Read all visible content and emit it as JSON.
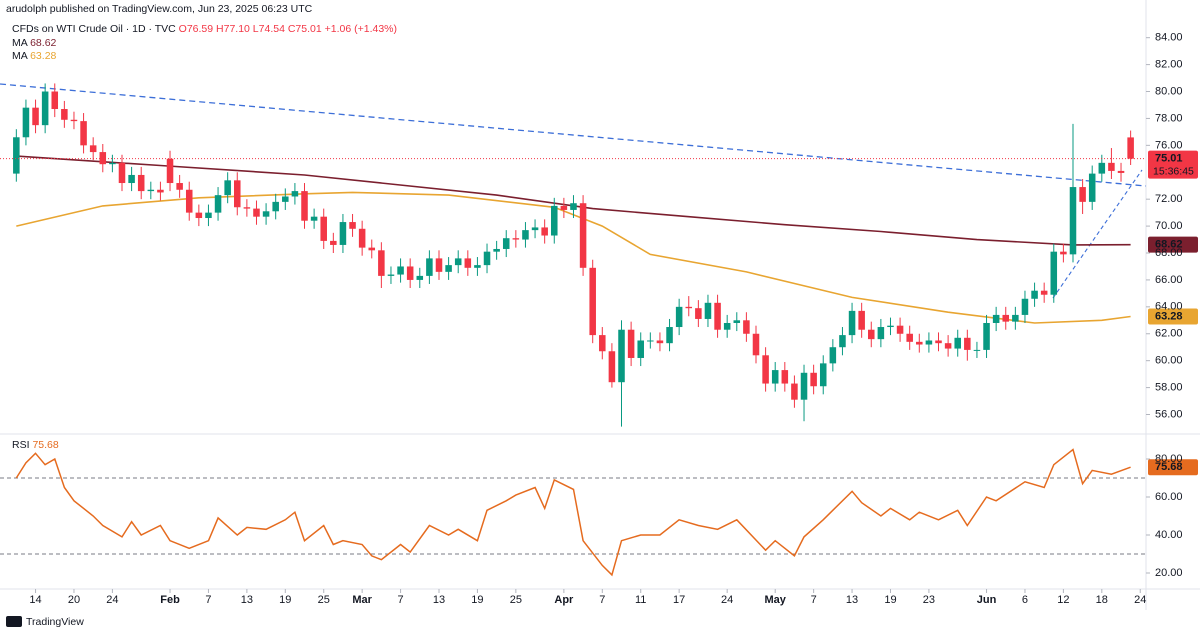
{
  "header": {
    "published": "arudolph published on TradingView.com, Jun 23, 2025 06:23 UTC",
    "symbol": "CFDs on WTI Crude Oil · 1D · TVC",
    "ohlc": "O76.59 H77.10 L74.54 C75.01",
    "change": "+1.06 (+1.43%)",
    "countdown": "15:36:45"
  },
  "footer": {
    "brand": "TradingView"
  },
  "chart_data": [
    {
      "type": "candlestick",
      "xlim": [
        -1.7,
        117.6
      ],
      "ylim": [
        54.7,
        86.8
      ],
      "grid": false,
      "up_color": "#089981",
      "down_color": "#f23645",
      "yticks": [
        {
          "value": 84,
          "label": "84.00"
        },
        {
          "value": 82,
          "label": "82.00"
        },
        {
          "value": 80,
          "label": "80.00"
        },
        {
          "value": 78,
          "label": "78.00"
        },
        {
          "value": 76,
          "label": "76.00"
        },
        {
          "value": 72,
          "label": "72.00"
        },
        {
          "value": 70,
          "label": "70.00"
        },
        {
          "value": 68,
          "label": "68.00"
        },
        {
          "value": 66,
          "label": "66.00"
        },
        {
          "value": 64,
          "label": "64.00"
        },
        {
          "value": 62,
          "label": "62.00"
        },
        {
          "value": 60,
          "label": "60.00"
        },
        {
          "value": 58,
          "label": "58.00"
        },
        {
          "value": 56,
          "label": "56.00"
        }
      ],
      "xticks": [
        {
          "value": 2,
          "label": "14"
        },
        {
          "value": 6,
          "label": "20"
        },
        {
          "value": 10,
          "label": "24"
        },
        {
          "value": 16,
          "label": "Feb"
        },
        {
          "value": 20,
          "label": "7"
        },
        {
          "value": 24,
          "label": "13"
        },
        {
          "value": 28,
          "label": "19"
        },
        {
          "value": 32,
          "label": "25"
        },
        {
          "value": 36,
          "label": "Mar"
        },
        {
          "value": 40,
          "label": "7"
        },
        {
          "value": 44,
          "label": "13"
        },
        {
          "value": 48,
          "label": "19"
        },
        {
          "value": 52,
          "label": "25"
        },
        {
          "value": 57,
          "label": "Apr"
        },
        {
          "value": 61,
          "label": "7"
        },
        {
          "value": 65,
          "label": "11"
        },
        {
          "value": 69,
          "label": "17"
        },
        {
          "value": 74,
          "label": "24"
        },
        {
          "value": 79,
          "label": "May"
        },
        {
          "value": 83,
          "label": "7"
        },
        {
          "value": 87,
          "label": "13"
        },
        {
          "value": 91,
          "label": "19"
        },
        {
          "value": 95,
          "label": "23"
        },
        {
          "value": 101,
          "label": "Jun"
        },
        {
          "value": 105,
          "label": "6"
        },
        {
          "value": 109,
          "label": "12"
        },
        {
          "value": 113,
          "label": "18"
        },
        {
          "value": 117,
          "label": "24"
        }
      ],
      "open": [
        73.9,
        76.6,
        78.8,
        77.5,
        80.0,
        78.7,
        77.9,
        77.8,
        76.0,
        75.5,
        74.6,
        74.7,
        73.2,
        73.8,
        72.6,
        72.7,
        75.0,
        73.2,
        72.7,
        71.0,
        70.6,
        71.0,
        72.3,
        73.4,
        71.4,
        71.3,
        70.7,
        71.1,
        71.8,
        72.2,
        72.6,
        70.4,
        70.7,
        68.9,
        68.6,
        70.3,
        69.8,
        68.4,
        68.2,
        66.3,
        66.4,
        67.0,
        66.0,
        66.3,
        67.6,
        66.6,
        67.1,
        67.6,
        66.9,
        67.1,
        68.1,
        68.3,
        69.1,
        69.0,
        69.7,
        69.9,
        69.3,
        71.5,
        71.2,
        71.7,
        66.9,
        61.9,
        60.7,
        58.4,
        62.3,
        60.2,
        61.5,
        61.5,
        61.3,
        62.5,
        64.0,
        63.9,
        63.1,
        64.3,
        62.3,
        62.8,
        63.0,
        62.0,
        60.4,
        58.3,
        59.3,
        58.3,
        57.1,
        59.1,
        58.1,
        59.8,
        61.0,
        61.9,
        63.7,
        62.3,
        61.6,
        62.5,
        62.6,
        62.0,
        61.4,
        61.2,
        61.5,
        61.3,
        60.9,
        61.7,
        60.8,
        60.8,
        62.8,
        63.4,
        62.9,
        63.4,
        64.6,
        65.2,
        64.9,
        68.1,
        67.9,
        72.9,
        71.8,
        73.9,
        74.7,
        74.1,
        76.59
      ],
      "high": [
        77.2,
        79.4,
        79.4,
        80.6,
        80.6,
        79.3,
        78.5,
        78.4,
        76.6,
        76.1,
        75.3,
        75.3,
        74.4,
        74.4,
        73.3,
        73.3,
        75.6,
        73.8,
        73.3,
        71.6,
        71.6,
        72.9,
        74.0,
        74.0,
        72.0,
        71.9,
        71.7,
        72.4,
        72.8,
        73.2,
        73.2,
        71.3,
        71.3,
        69.5,
        70.9,
        70.9,
        70.4,
        69.0,
        68.8,
        67.0,
        67.6,
        67.6,
        66.9,
        68.2,
        68.2,
        67.7,
        68.2,
        68.2,
        67.7,
        68.7,
        68.9,
        69.7,
        69.7,
        70.3,
        70.5,
        70.5,
        72.1,
        72.1,
        72.3,
        72.3,
        67.5,
        62.5,
        61.3,
        63.0,
        62.9,
        62.1,
        62.1,
        62.1,
        63.1,
        64.6,
        64.8,
        64.5,
        64.9,
        64.9,
        63.4,
        63.6,
        63.6,
        62.6,
        61.0,
        59.9,
        59.9,
        58.9,
        59.7,
        59.7,
        60.4,
        61.6,
        62.5,
        64.3,
        64.3,
        62.9,
        63.1,
        63.2,
        63.2,
        62.6,
        62.0,
        62.1,
        62.1,
        61.9,
        62.3,
        62.3,
        61.4,
        63.4,
        64.0,
        64.0,
        64.0,
        65.2,
        65.8,
        65.8,
        68.7,
        68.7,
        77.6,
        73.5,
        74.5,
        75.3,
        75.8,
        74.7,
        77.1
      ],
      "low": [
        73.3,
        76.0,
        76.9,
        76.9,
        78.1,
        77.3,
        77.2,
        75.4,
        74.9,
        74.0,
        74.0,
        72.6,
        72.6,
        72.0,
        72.0,
        71.9,
        72.6,
        72.1,
        70.4,
        70.0,
        70.0,
        70.4,
        71.7,
        70.8,
        70.7,
        70.1,
        70.1,
        70.5,
        71.2,
        71.6,
        69.8,
        69.8,
        68.3,
        68.0,
        68.0,
        69.2,
        67.8,
        67.6,
        65.4,
        65.7,
        65.8,
        65.4,
        65.4,
        65.7,
        66.0,
        66.0,
        66.5,
        66.3,
        66.3,
        66.5,
        67.5,
        67.7,
        68.4,
        68.4,
        69.1,
        68.7,
        68.7,
        70.6,
        70.6,
        66.3,
        61.3,
        60.1,
        58.0,
        55.1,
        59.6,
        59.6,
        60.9,
        60.7,
        60.7,
        61.9,
        63.3,
        62.5,
        62.5,
        61.7,
        61.7,
        62.2,
        61.4,
        59.8,
        57.7,
        57.7,
        57.7,
        56.5,
        55.5,
        57.5,
        57.5,
        59.2,
        60.4,
        61.3,
        61.7,
        61.0,
        61.0,
        61.9,
        61.4,
        60.8,
        60.6,
        60.6,
        60.7,
        60.3,
        60.3,
        60.0,
        60.2,
        60.2,
        62.2,
        62.3,
        62.3,
        62.8,
        64.0,
        64.3,
        64.3,
        67.3,
        67.3,
        70.9,
        71.2,
        73.3,
        73.5,
        73.3,
        74.54
      ],
      "close": [
        76.6,
        78.8,
        77.5,
        80.0,
        78.7,
        77.9,
        77.8,
        76.0,
        75.5,
        74.6,
        74.7,
        73.2,
        73.8,
        72.6,
        72.7,
        72.5,
        73.2,
        72.7,
        71.0,
        70.6,
        71.0,
        72.3,
        73.4,
        71.4,
        71.3,
        70.7,
        71.1,
        71.8,
        72.2,
        72.6,
        70.4,
        70.7,
        68.9,
        68.6,
        70.3,
        69.8,
        68.4,
        68.2,
        66.3,
        66.4,
        67.0,
        66.0,
        66.3,
        67.6,
        66.6,
        67.1,
        67.6,
        66.9,
        67.1,
        68.1,
        68.3,
        69.1,
        69.0,
        69.7,
        69.9,
        69.3,
        71.5,
        71.2,
        71.7,
        66.9,
        61.9,
        60.7,
        58.4,
        62.3,
        60.2,
        61.5,
        61.5,
        61.3,
        62.5,
        64.0,
        63.9,
        63.1,
        64.3,
        62.3,
        62.8,
        63.0,
        62.0,
        60.4,
        58.3,
        59.3,
        58.3,
        57.1,
        59.1,
        58.1,
        59.8,
        61.0,
        61.9,
        63.7,
        62.3,
        61.6,
        62.5,
        62.6,
        62.0,
        61.4,
        61.2,
        61.5,
        61.3,
        60.9,
        61.7,
        60.8,
        60.8,
        62.8,
        63.4,
        62.9,
        63.4,
        64.6,
        65.2,
        64.9,
        68.1,
        67.9,
        72.9,
        71.8,
        73.9,
        74.7,
        74.1,
        73.95,
        75.01
      ],
      "series": [
        {
          "name": "MA",
          "color": "#7b1f2e",
          "x": [
            0,
            15,
            30,
            50,
            60,
            70,
            80,
            90,
            100,
            110,
            116
          ],
          "values": [
            75.2,
            74.5,
            73.8,
            72.3,
            71.3,
            70.7,
            70.1,
            69.6,
            69.0,
            68.6,
            68.62
          ]
        },
        {
          "name": "MA",
          "color": "#e8a531",
          "x": [
            0,
            9,
            19,
            30,
            35,
            45,
            56,
            61,
            66,
            76,
            87,
            97,
            106,
            113,
            116
          ],
          "values": [
            70.0,
            71.5,
            72.1,
            72.4,
            72.5,
            72.3,
            71.4,
            70.0,
            67.9,
            66.6,
            64.7,
            63.6,
            62.8,
            63.0,
            63.28
          ]
        }
      ]
    },
    {
      "type": "line",
      "xlim": [
        -1.7,
        117.6
      ],
      "ylim": [
        12.1,
        92.1
      ],
      "yticks": [
        {
          "value": 80,
          "label": "80.00"
        },
        {
          "value": 60,
          "label": "60.00"
        },
        {
          "value": 40,
          "label": "40.00"
        },
        {
          "value": 20,
          "label": "20.00"
        }
      ],
      "levels": [
        70,
        30
      ],
      "series": [
        {
          "name": "RSI",
          "color": "#e56b1f",
          "x": [
            0,
            1,
            2,
            3,
            4,
            5,
            6,
            8,
            9,
            11,
            12,
            13,
            15,
            16,
            18,
            20,
            21,
            23,
            24,
            26,
            28,
            29,
            30,
            32,
            33,
            34,
            36,
            37,
            38,
            40,
            41,
            43,
            45,
            46,
            48,
            49,
            51,
            52,
            54,
            55,
            56,
            58,
            59,
            61,
            62,
            63,
            65,
            67,
            69,
            71,
            73,
            75,
            78,
            79,
            81,
            82,
            84,
            85,
            87,
            88,
            90,
            91,
            93,
            94,
            96,
            98,
            99,
            101,
            102,
            105,
            107,
            108,
            110,
            111,
            112,
            114,
            116
          ],
          "values": [
            70,
            78,
            83,
            77,
            80,
            65,
            58,
            50,
            45,
            39,
            47,
            40,
            45,
            37,
            33,
            37,
            49,
            40,
            44,
            43,
            48,
            52,
            37,
            45,
            35,
            37,
            35,
            29,
            27,
            35,
            31,
            45,
            40,
            43,
            37,
            53,
            58,
            61,
            65,
            54,
            69,
            64,
            37,
            24,
            19,
            37,
            40,
            40,
            48,
            45,
            43,
            48,
            32,
            37,
            29,
            39,
            48,
            53,
            63,
            57,
            50,
            54,
            48,
            52,
            48,
            53,
            45,
            60,
            58,
            68,
            65,
            77,
            85,
            67,
            74,
            72,
            75.68
          ]
        }
      ]
    }
  ]
}
